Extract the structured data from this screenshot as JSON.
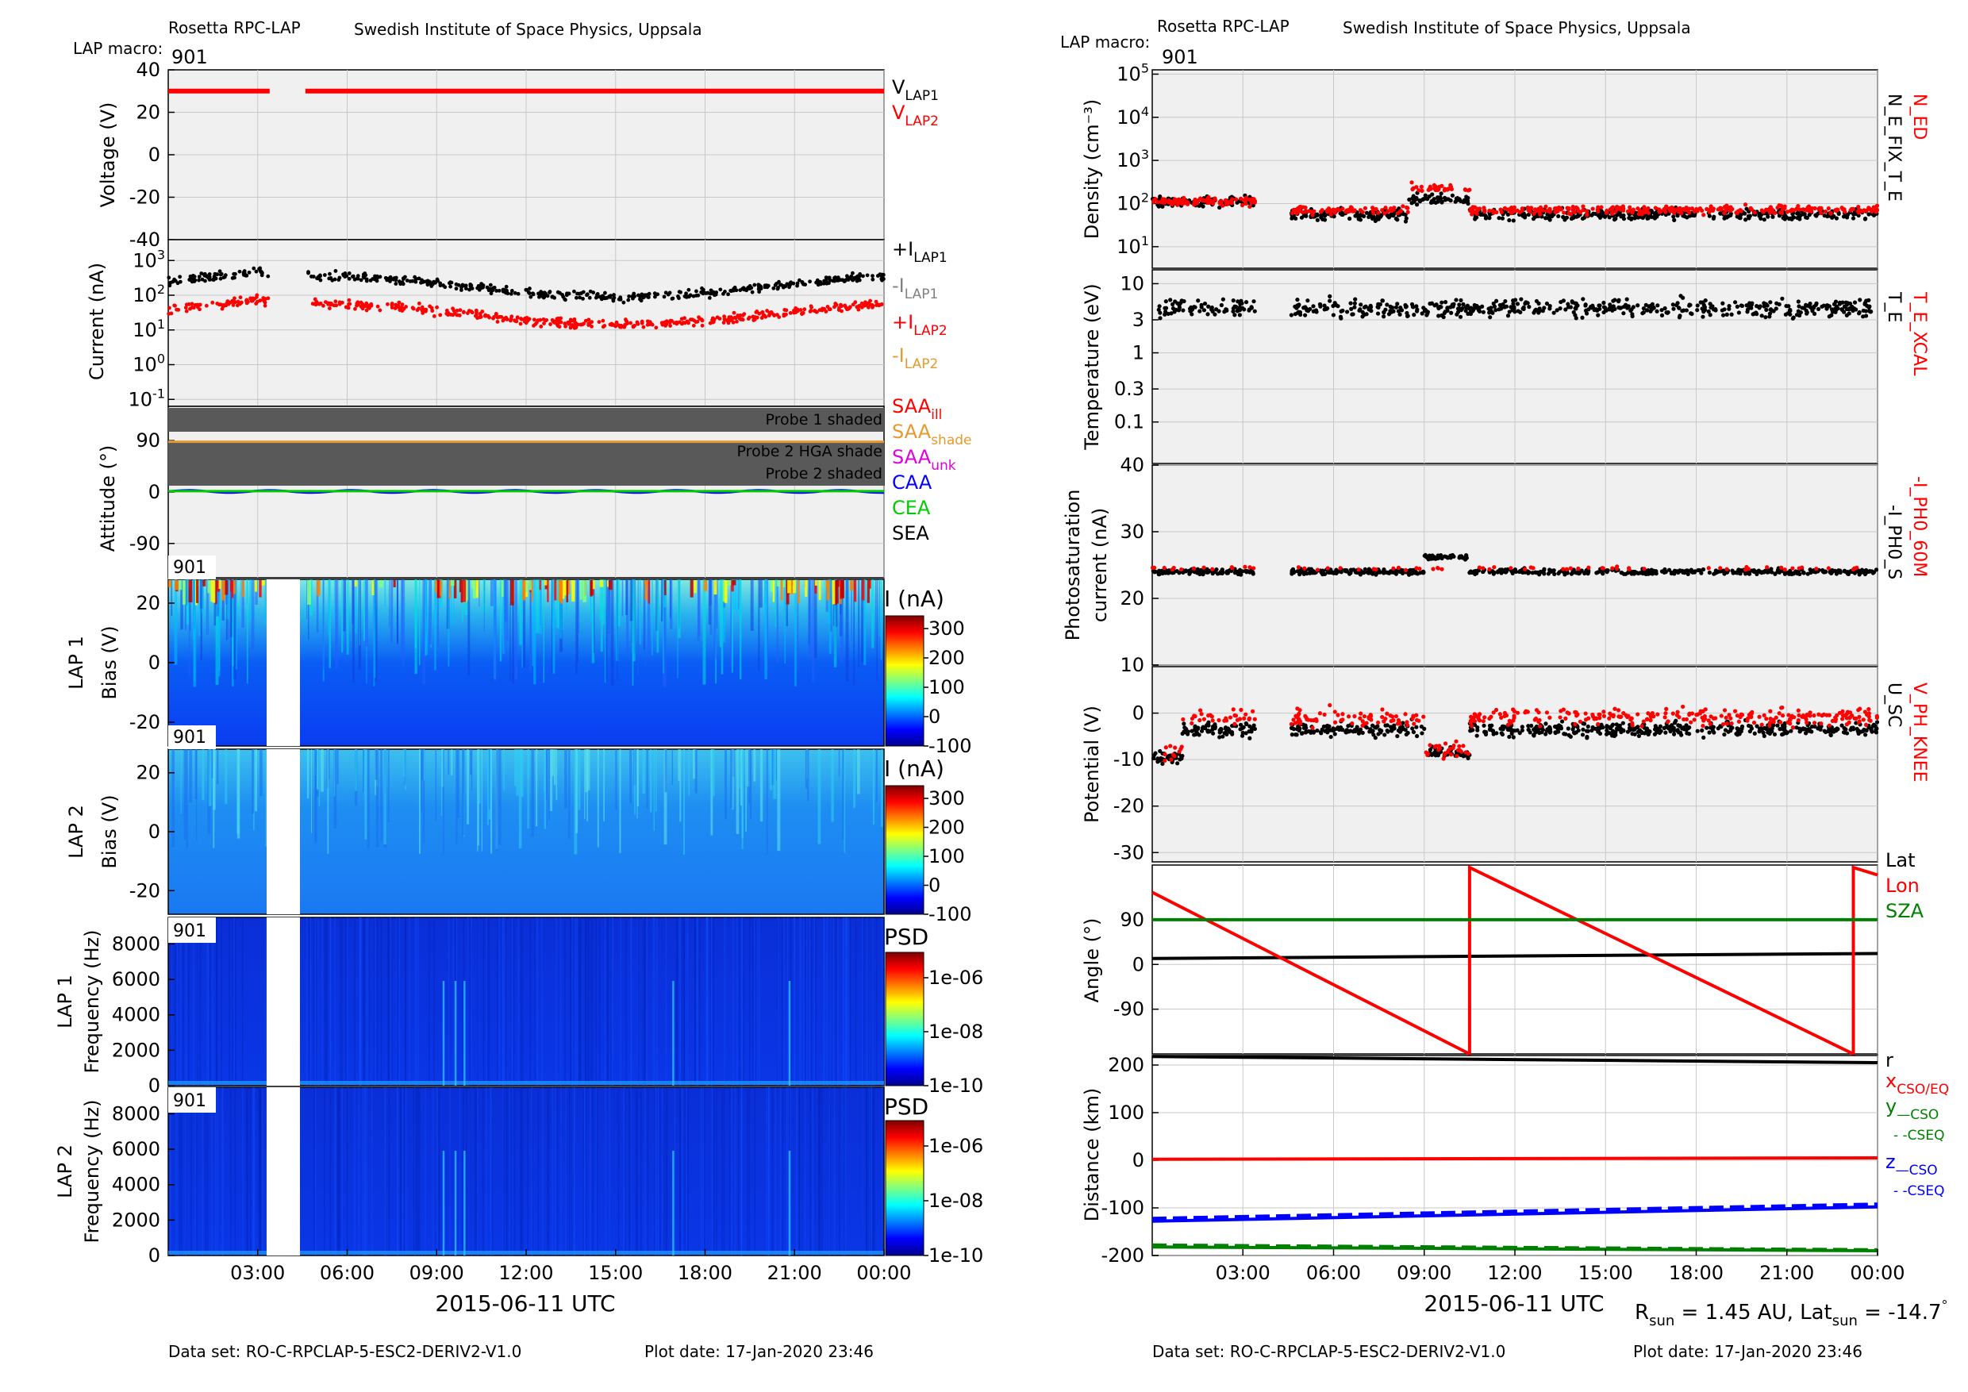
{
  "left": {
    "header": {
      "app": "Rosetta RPC-LAP",
      "institute": "Swedish Institute of Space Physics, Uppsala",
      "macro_label": "LAP macro:",
      "macro_value": "901"
    },
    "footer": {
      "dataset": "Data set: RO-C-RPCLAP-5-ESC2-DERIV2-V1.0",
      "plot_date": "Plot date: 17-Jan-2020 23:46"
    },
    "x_title": "2015-06-11 UTC",
    "x_ticks": [
      "03:00",
      "06:00",
      "09:00",
      "12:00",
      "15:00",
      "18:00",
      "21:00",
      "00:00"
    ]
  },
  "right": {
    "header": {
      "app": "Rosetta RPC-LAP",
      "institute": "Swedish Institute of Space Physics, Uppsala",
      "macro_label": "LAP macro:",
      "macro_value": "901"
    },
    "footer": {
      "dataset": "Data set: RO-C-RPCLAP-5-ESC2-DERIV2-V1.0",
      "plot_date": "Plot date: 17-Jan-2020 23:46"
    },
    "x_title": "2015-06-11 UTC",
    "x_ticks": [
      "03:00",
      "06:00",
      "09:00",
      "12:00",
      "15:00",
      "18:00",
      "21:00",
      "00:00"
    ],
    "rsun_prefix": "R",
    "rsun_sub": "sun",
    "rsun_value": " = 1.45 AU, Lat",
    "lat_sub": "sun",
    "lat_value": " = -14.7",
    "degree": "°"
  },
  "colors": {
    "black": "#000000",
    "red": "#ff0000",
    "gray": "#808080",
    "orange": "#e69a2e",
    "magenta": "#e000e0",
    "blue": "#0000ff",
    "green": "#00cc00",
    "dkgreen": "#008000",
    "panel": "#f0f0f0",
    "grid": "#c8c8c8",
    "shade": "#595959"
  },
  "chart_data": [
    {
      "id": "voltage",
      "type": "line",
      "ylabel": "Voltage (V)",
      "ylim": [
        -40,
        40
      ],
      "yticks": [
        "40",
        "20",
        "0",
        "-20",
        "-40"
      ],
      "series": [
        {
          "name": "V_LAP1",
          "label_main": "V",
          "label_sub": "LAP1",
          "color": "#000000",
          "segments": [
            [
              0.0,
              3.4,
              30
            ],
            [
              4.6,
              24.0,
              30
            ]
          ]
        },
        {
          "name": "V_LAP2",
          "label_main": "V",
          "label_sub": "LAP2",
          "color": "#ff0000",
          "segments": [
            [
              0.0,
              3.4,
              30
            ],
            [
              4.6,
              24.0,
              30
            ]
          ]
        }
      ]
    },
    {
      "id": "current",
      "type": "scatter",
      "ylabel": "Current (nA)",
      "yscale": "log",
      "ylim_log10": [
        -1,
        4
      ],
      "yticks": [
        "10^3",
        "10^2",
        "10^1",
        "10^0",
        "10^-1"
      ],
      "series": [
        {
          "label_main": "+I",
          "label_sub": "LAP1",
          "color": "#000000",
          "level_log10": 2.3
        },
        {
          "label_main": "-I",
          "label_sub": "LAP1",
          "color": "#808080"
        },
        {
          "label_main": "+I",
          "label_sub": "LAP2",
          "color": "#ff0000",
          "level_log10": 1.5
        },
        {
          "label_main": "-I",
          "label_sub": "LAP2",
          "color": "#e69a2e"
        }
      ]
    },
    {
      "id": "attitude",
      "type": "line",
      "ylabel": "Attitude (°)",
      "ylim": [
        -150,
        150
      ],
      "yticks": [
        "90",
        "0",
        "-90"
      ],
      "bands": [
        "Probe 1 shaded",
        "Probe 2 HGA shade",
        "Probe 2 shaded"
      ],
      "series": [
        {
          "name": "SAA_ill",
          "label_main": "SAA",
          "label_sub": "ill",
          "color": "#ff0000"
        },
        {
          "name": "SAA_shade",
          "label_main": "SAA",
          "label_sub": "shade",
          "color": "#e69a2e",
          "value": 88
        },
        {
          "name": "SAA_unk",
          "label_main": "SAA",
          "label_sub": "unk",
          "color": "#e000e0"
        },
        {
          "name": "CAA",
          "label_main": "CAA",
          "label_sub": "",
          "color": "#0000ff",
          "value": 0
        },
        {
          "name": "CEA",
          "label_main": "CEA",
          "label_sub": "",
          "color": "#00cc00",
          "value": 1
        },
        {
          "name": "SEA",
          "label_main": "SEA",
          "label_sub": "",
          "color": "#000000"
        }
      ]
    },
    {
      "id": "lap1_bias",
      "type": "heatmap",
      "ylabel": "LAP 1",
      "ylabel2": "Bias (V)",
      "badge": "901",
      "ylim": [
        -28,
        28
      ],
      "yticks": [
        "20",
        "0",
        "-20"
      ],
      "cbar_title": "I (nA)",
      "cbar_ticks": [
        "300",
        "200",
        "100",
        "0",
        "-100"
      ]
    },
    {
      "id": "lap2_bias",
      "type": "heatmap",
      "ylabel": "LAP 2",
      "ylabel2": "Bias (V)",
      "badge": "901",
      "ylim": [
        -28,
        28
      ],
      "yticks": [
        "20",
        "0",
        "-20"
      ],
      "cbar_title": "I (nA)",
      "cbar_ticks": [
        "300",
        "200",
        "100",
        "0",
        "-100"
      ]
    },
    {
      "id": "lap1_psd",
      "type": "heatmap",
      "ylabel": "LAP 1",
      "ylabel2": "Frequency (Hz)",
      "badge": "901",
      "ylim": [
        0,
        9500
      ],
      "yticks": [
        "8000",
        "6000",
        "4000",
        "2000",
        "0"
      ],
      "cbar_title": "PSD",
      "cbar_ticks": [
        "1e-06",
        "1e-08",
        "1e-10"
      ]
    },
    {
      "id": "lap2_psd",
      "type": "heatmap",
      "ylabel": "LAP 2",
      "ylabel2": "Frequency (Hz)",
      "badge": "901",
      "ylim": [
        0,
        9500
      ],
      "yticks": [
        "8000",
        "6000",
        "4000",
        "2000",
        "0"
      ],
      "cbar_title": "PSD",
      "cbar_ticks": [
        "1e-06",
        "1e-08",
        "1e-10"
      ]
    },
    {
      "id": "density",
      "type": "scatter",
      "ylabel": "Density (cm⁻³)",
      "yscale": "log",
      "ylim_log10": [
        0.5,
        5
      ],
      "yticks": [
        "10^5",
        "10^4",
        "10^3",
        "10^2",
        "10^1"
      ],
      "series": [
        {
          "name": "N_ED",
          "color": "#ff0000",
          "level_log10": 1.85
        },
        {
          "name": "N_E_FIX_T_E",
          "color": "#000000",
          "level_log10": 1.85
        }
      ]
    },
    {
      "id": "temperature",
      "type": "scatter",
      "ylabel": "Temperature (eV)",
      "yscale": "log",
      "ylim_log10": [
        -1.6,
        1.2
      ],
      "yticks": [
        "10",
        "3",
        "1",
        "0.3",
        "0.1"
      ],
      "series": [
        {
          "name": "T_E_XCAL",
          "color": "#ff0000"
        },
        {
          "name": "T_E",
          "color": "#000000",
          "level_log10": 0.6
        }
      ]
    },
    {
      "id": "photosat",
      "type": "scatter",
      "ylabel": "Photosaturation",
      "ylabel2": "current (nA)",
      "ylim": [
        10,
        40
      ],
      "yticks": [
        "40",
        "30",
        "20",
        "10"
      ],
      "series": [
        {
          "name": "-I_PH0_60M",
          "color": "#ff0000",
          "level": 24.5
        },
        {
          "name": "-I_PH0_S",
          "color": "#000000",
          "level": 24
        }
      ]
    },
    {
      "id": "potential",
      "type": "scatter",
      "ylabel": "Potential (V)",
      "ylim": [
        -32,
        10
      ],
      "yticks": [
        "0",
        "-10",
        "-20",
        "-30"
      ],
      "series": [
        {
          "name": "V_PH_KNEE",
          "color": "#ff0000",
          "level": -1
        },
        {
          "name": "U_SC",
          "color": "#000000",
          "level": -3
        }
      ]
    },
    {
      "id": "angle",
      "type": "line",
      "ylabel": "Angle (°)",
      "ylim": [
        -180,
        200
      ],
      "yticks": [
        "90",
        "0",
        "-90"
      ],
      "series": [
        {
          "name": "Lat",
          "color": "#000000",
          "points": [
            [
              0,
              12
            ],
            [
              24,
              22
            ]
          ]
        },
        {
          "name": "Lon",
          "color": "#ff0000",
          "points": [
            [
              0,
              145
            ],
            [
              10.5,
              -180
            ],
            [
              10.5,
              195
            ],
            [
              23.2,
              -180
            ],
            [
              23.2,
              195
            ],
            [
              24,
              180
            ]
          ]
        },
        {
          "name": "SZA",
          "color": "#008000",
          "points": [
            [
              0,
              90
            ],
            [
              24,
              90
            ]
          ]
        }
      ]
    },
    {
      "id": "distance",
      "type": "line",
      "ylabel": "Distance (km)",
      "ylim": [
        -200,
        220
      ],
      "yticks": [
        "200",
        "100",
        "0",
        "-100",
        "-200"
      ],
      "series": [
        {
          "name": "r",
          "label_main": "r",
          "label_sub": "",
          "color": "#000000",
          "points": [
            [
              0,
              218
            ],
            [
              24,
              205
            ]
          ]
        },
        {
          "name": "x",
          "label_main": "x",
          "label_sub": "CSO/EQ",
          "color": "#ff0000",
          "points": [
            [
              0,
              2
            ],
            [
              24,
              5
            ]
          ]
        },
        {
          "name": "y CSO",
          "label_main": "y",
          "label_sub": "—CSO",
          "color": "#008000",
          "points": [
            [
              0,
              -182
            ],
            [
              24,
              -190
            ]
          ]
        },
        {
          "name": "y CSEQ",
          "label_main": "",
          "label_sub": "- -CSEQ",
          "color": "#008000",
          "points": [
            [
              0,
              -178
            ],
            [
              24,
              -188
            ]
          ]
        },
        {
          "name": "z CSO",
          "label_main": "z",
          "label_sub": "—CSO",
          "color": "#0000ff",
          "points": [
            [
              0,
              -128
            ],
            [
              24,
              -98
            ]
          ]
        },
        {
          "name": "z CSEQ",
          "label_main": "",
          "label_sub": "- -CSEQ",
          "color": "#0000ff",
          "points": [
            [
              0,
              -122
            ],
            [
              24,
              -92
            ]
          ]
        }
      ]
    }
  ]
}
